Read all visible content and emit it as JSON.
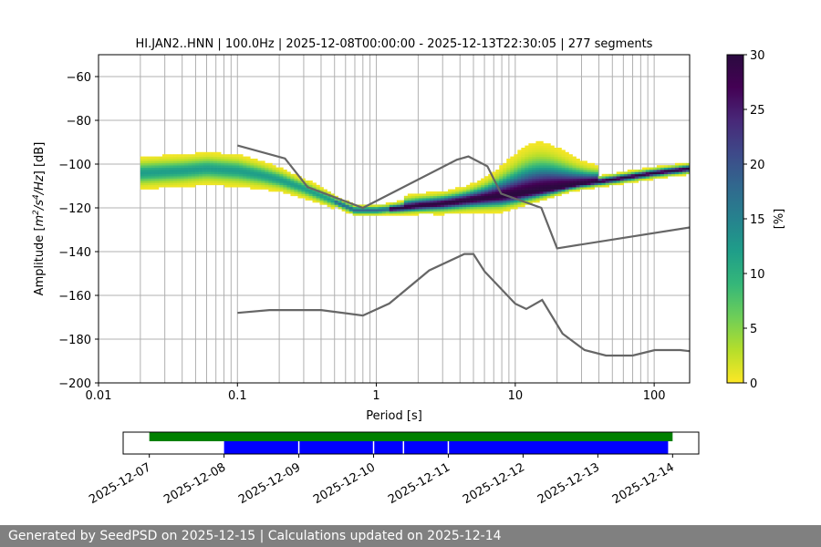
{
  "chart_data": [
    {
      "type": "heatmap",
      "title": "HI.JAN2..HNN | 100.0Hz | 2025-12-08T00:00:00 - 2025-12-13T22:30:05 | 277 segments",
      "xlabel": "Period [s]",
      "ylabel_parts": {
        "main": "Amplitude [",
        "m": "m",
        "sup1": "2",
        "mid": "/s",
        "sup2": "4",
        "tail": "/Hz",
        "unit": "] [dB]"
      },
      "xscale": "log",
      "xlim": [
        0.01,
        180
      ],
      "ylim": [
        -200,
        -50
      ],
      "x_ticks": [
        0.01,
        0.1,
        1,
        10,
        100
      ],
      "x_tick_labels": [
        "0.01",
        "0.1",
        "1",
        "10",
        "100"
      ],
      "y_ticks": [
        -200,
        -180,
        -160,
        -140,
        -120,
        -100,
        -80,
        -60
      ],
      "y_tick_labels": [
        "−200",
        "−180",
        "−160",
        "−140",
        "−120",
        "−100",
        "−80",
        "−60"
      ],
      "grid": true,
      "colorbar": {
        "label": "[%]",
        "range": [
          0,
          30
        ],
        "ticks": [
          0,
          5,
          10,
          15,
          20,
          25,
          30
        ],
        "tick_labels": [
          "0",
          "5",
          "10",
          "15",
          "20",
          "25",
          "30"
        ],
        "colormap": "viridis_r"
      },
      "mode_curve": {
        "period": [
          0.02,
          0.04,
          0.06,
          0.1,
          0.15,
          0.2,
          0.3,
          0.5,
          0.7,
          0.8,
          1,
          1.5,
          2,
          3,
          5,
          7,
          10,
          20,
          30,
          50,
          100,
          180
        ],
        "db": [
          -104,
          -103,
          -102,
          -103,
          -105,
          -107,
          -111,
          -117,
          -121,
          -121,
          -121,
          -120,
          -119,
          -118,
          -116,
          -115,
          -114,
          -111,
          -109,
          -107,
          -104,
          -102
        ]
      },
      "nhnm": {
        "period": [
          0.1,
          0.22,
          0.32,
          0.8,
          3.8,
          4.6,
          6.3,
          7.9,
          15.4,
          20,
          354.8
        ],
        "db": [
          -91.5,
          -97.4,
          -110.5,
          -120,
          -98,
          -96.5,
          -101,
          -113.5,
          -120,
          -138.5,
          -126
        ]
      },
      "nlnm": {
        "period": [
          0.1,
          0.17,
          0.4,
          0.8,
          1.24,
          2.4,
          4.3,
          5,
          6,
          10,
          12,
          15.6,
          21.9,
          31.6,
          45,
          70,
          101,
          154,
          180
        ],
        "db": [
          -168,
          -166.7,
          -166.7,
          -169.2,
          -163.7,
          -148.6,
          -141.1,
          -141.1,
          -149,
          -163.8,
          -166.2,
          -162.1,
          -177.5,
          -185,
          -187.5,
          -187.5,
          -185,
          -185,
          -185.5
        ]
      }
    },
    {
      "type": "timeline",
      "date_ticks": [
        "2025-12-07",
        "2025-12-08",
        "2025-12-09",
        "2025-12-10",
        "2025-12-11",
        "2025-12-12",
        "2025-12-13",
        "2025-12-14"
      ],
      "range_days": [
        -0.35,
        7.35
      ],
      "available_data": {
        "color": "#008000",
        "start_day": 0.0,
        "end_day": 7.0
      },
      "used_data": {
        "color": "#0000ff",
        "start_day": 1.0,
        "end_day": 6.94,
        "gaps_day": [
          2.0,
          3.0,
          3.4,
          4.0
        ]
      }
    }
  ],
  "footer": {
    "text": "Generated by SeedPSD on 2025-12-15 | Calculations updated on 2025-12-14"
  }
}
